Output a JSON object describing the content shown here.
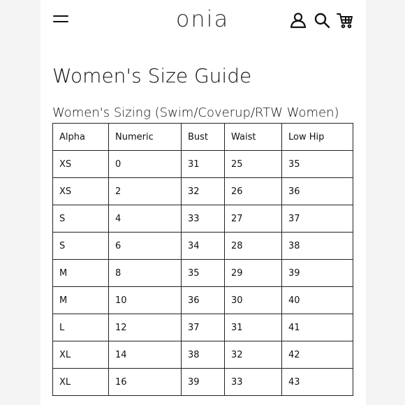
{
  "header": {
    "logo": "onia",
    "icons": [
      "menu-icon",
      "user-icon",
      "search-icon",
      "cart-icon"
    ]
  },
  "page": {
    "title": "Women's Size Guide",
    "subtitle": "Women's Sizing (Swim/Coverup/RTW Women)"
  },
  "table": {
    "columns": [
      "Alpha",
      "Numeric",
      "Bust",
      "Waist",
      "Low Hip"
    ],
    "rows": [
      [
        "XS",
        "0",
        "31",
        "25",
        "35"
      ],
      [
        "XS",
        "2",
        "32",
        "26",
        "36"
      ],
      [
        "S",
        "4",
        "33",
        "27",
        "37"
      ],
      [
        "S",
        "6",
        "34",
        "28",
        "38"
      ],
      [
        "M",
        "8",
        "35",
        "29",
        "39"
      ],
      [
        "M",
        "10",
        "36",
        "30",
        "40"
      ],
      [
        "L",
        "12",
        "37",
        "31",
        "41"
      ],
      [
        "XL",
        "14",
        "38",
        "32",
        "42"
      ],
      [
        "XL",
        "16",
        "39",
        "33",
        "43"
      ]
    ]
  }
}
